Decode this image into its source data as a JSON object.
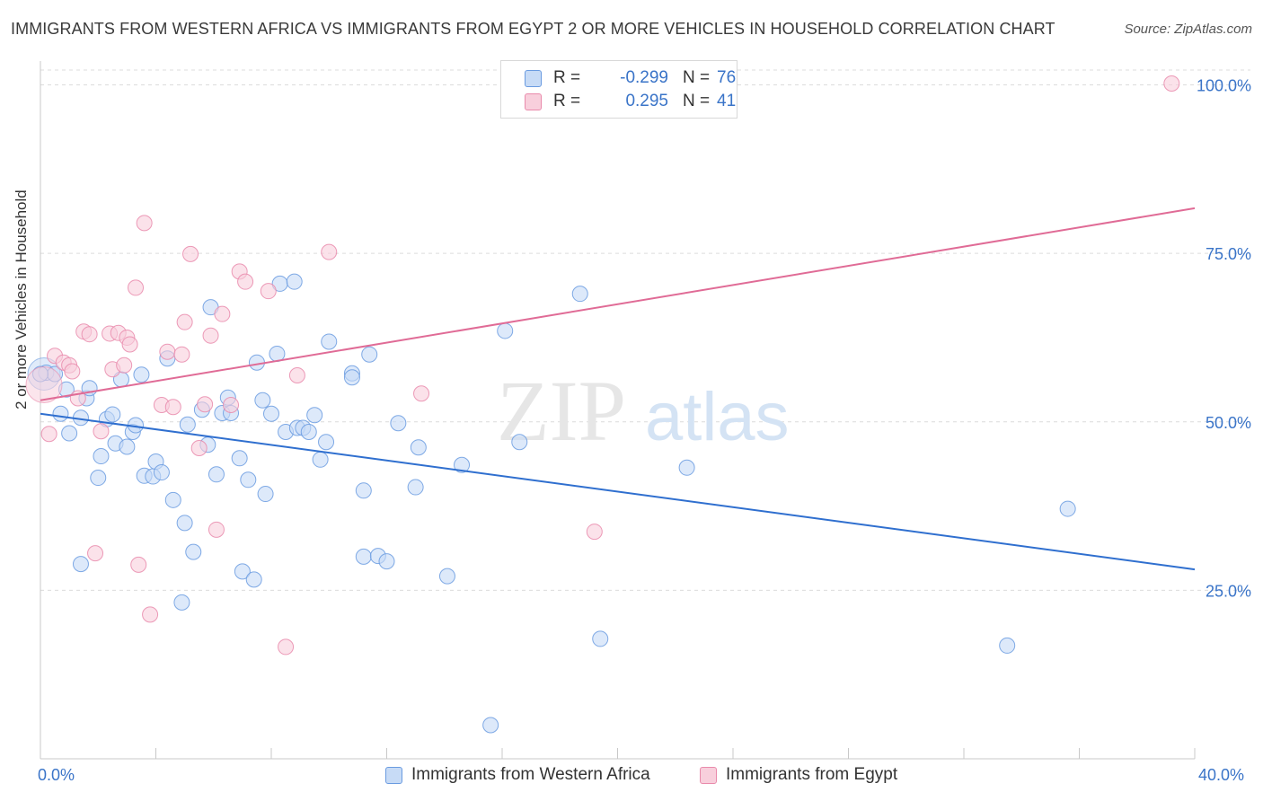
{
  "header": {
    "title": "IMMIGRANTS FROM WESTERN AFRICA VS IMMIGRANTS FROM EGYPT 2 OR MORE VEHICLES IN HOUSEHOLD CORRELATION CHART",
    "source": "Source: ZipAtlas.com"
  },
  "legend": {
    "r_label": "R =",
    "n_label": "N =",
    "series": [
      {
        "name": "Immigrants from Western Africa",
        "r": "-0.299",
        "n": "76"
      },
      {
        "name": "Immigrants from Egypt",
        "r": "0.295",
        "n": "41"
      }
    ]
  },
  "watermark": {
    "zip": "ZIP",
    "atlas": "atlas"
  },
  "chart_data": {
    "type": "scatter",
    "title": "IMMIGRANTS FROM WESTERN AFRICA VS IMMIGRANTS FROM EGYPT 2 OR MORE VEHICLES IN HOUSEHOLD CORRELATION CHART",
    "xlabel": "",
    "ylabel": "2 or more Vehicles in Household",
    "xlim": [
      0,
      40
    ],
    "ylim": [
      0,
      103
    ],
    "x_tick_labels": [
      "0.0%",
      "40.0%"
    ],
    "y_ticks": [
      25,
      50,
      75,
      100
    ],
    "y_tick_labels": [
      "25.0%",
      "50.0%",
      "75.0%",
      "100.0%"
    ],
    "grid": true,
    "colors": {
      "blue": "#6a9be0",
      "blue_fill": "#c7dbf6",
      "blue_line": "#2f6fcf",
      "pink": "#e98aab",
      "pink_fill": "#f8cfdc",
      "pink_line": "#e06b96",
      "tick_label": "#3a74c8"
    },
    "series": [
      {
        "name": "Immigrants from Western Africa",
        "trend": {
          "x": [
            0,
            40
          ],
          "y": [
            51.2,
            28.1
          ]
        },
        "points": [
          [
            0.2,
            57.3
          ],
          [
            0.5,
            57.1
          ],
          [
            0.9,
            54.8
          ],
          [
            0.7,
            51.2
          ],
          [
            1.0,
            48.3
          ],
          [
            1.4,
            50.6
          ],
          [
            1.6,
            53.5
          ],
          [
            1.7,
            55.0
          ],
          [
            2.0,
            41.7
          ],
          [
            2.1,
            44.9
          ],
          [
            2.3,
            50.4
          ],
          [
            2.5,
            51.1
          ],
          [
            2.6,
            46.8
          ],
          [
            2.8,
            56.3
          ],
          [
            3.0,
            46.3
          ],
          [
            3.2,
            48.5
          ],
          [
            3.3,
            49.5
          ],
          [
            3.5,
            57.0
          ],
          [
            3.6,
            42.0
          ],
          [
            3.9,
            41.9
          ],
          [
            4.0,
            44.1
          ],
          [
            4.2,
            42.5
          ],
          [
            4.4,
            59.4
          ],
          [
            4.6,
            38.4
          ],
          [
            4.9,
            23.2
          ],
          [
            5.0,
            35.0
          ],
          [
            5.1,
            49.6
          ],
          [
            5.3,
            30.7
          ],
          [
            5.6,
            51.8
          ],
          [
            5.8,
            46.6
          ],
          [
            5.9,
            67.0
          ],
          [
            6.1,
            42.2
          ],
          [
            6.3,
            51.3
          ],
          [
            6.5,
            53.6
          ],
          [
            6.6,
            51.3
          ],
          [
            6.9,
            44.6
          ],
          [
            7.0,
            27.8
          ],
          [
            7.2,
            41.4
          ],
          [
            7.4,
            26.6
          ],
          [
            7.5,
            58.8
          ],
          [
            7.7,
            53.2
          ],
          [
            7.8,
            39.3
          ],
          [
            8.0,
            51.2
          ],
          [
            8.2,
            60.1
          ],
          [
            8.3,
            70.5
          ],
          [
            8.5,
            48.5
          ],
          [
            8.8,
            70.8
          ],
          [
            8.9,
            49.1
          ],
          [
            9.1,
            49.1
          ],
          [
            9.3,
            48.5
          ],
          [
            9.5,
            51.0
          ],
          [
            9.7,
            44.4
          ],
          [
            9.9,
            47.0
          ],
          [
            10.0,
            61.9
          ],
          [
            10.8,
            57.2
          ],
          [
            10.8,
            56.6
          ],
          [
            11.2,
            30.0
          ],
          [
            11.2,
            39.8
          ],
          [
            11.4,
            60.0
          ],
          [
            11.7,
            30.1
          ],
          [
            12.0,
            29.3
          ],
          [
            12.4,
            49.8
          ],
          [
            13.0,
            40.3
          ],
          [
            13.1,
            46.2
          ],
          [
            14.1,
            27.1
          ],
          [
            14.6,
            43.6
          ],
          [
            15.6,
            5.0
          ],
          [
            16.1,
            63.5
          ],
          [
            16.6,
            47.0
          ],
          [
            18.7,
            69.0
          ],
          [
            19.4,
            17.8
          ],
          [
            22.4,
            43.2
          ],
          [
            33.5,
            16.8
          ],
          [
            35.6,
            37.1
          ],
          [
            0.0,
            57.1
          ],
          [
            1.4,
            28.9
          ]
        ]
      },
      {
        "name": "Immigrants from Egypt",
        "trend": {
          "x": [
            0,
            40
          ],
          "y": [
            53.2,
            81.7
          ]
        },
        "points": [
          [
            0.3,
            48.2
          ],
          [
            0.5,
            59.8
          ],
          [
            0.8,
            58.8
          ],
          [
            1.0,
            58.4
          ],
          [
            1.1,
            57.5
          ],
          [
            1.3,
            53.5
          ],
          [
            1.5,
            63.4
          ],
          [
            1.7,
            63.0
          ],
          [
            1.9,
            30.5
          ],
          [
            2.1,
            48.6
          ],
          [
            2.4,
            63.1
          ],
          [
            2.5,
            57.8
          ],
          [
            2.7,
            63.2
          ],
          [
            2.9,
            58.4
          ],
          [
            3.0,
            62.5
          ],
          [
            3.1,
            61.5
          ],
          [
            3.3,
            69.9
          ],
          [
            3.4,
            28.8
          ],
          [
            3.6,
            79.5
          ],
          [
            3.8,
            21.4
          ],
          [
            4.2,
            52.5
          ],
          [
            4.4,
            60.4
          ],
          [
            4.6,
            52.2
          ],
          [
            4.9,
            60.0
          ],
          [
            5.0,
            64.8
          ],
          [
            5.2,
            74.9
          ],
          [
            5.5,
            46.1
          ],
          [
            5.7,
            52.6
          ],
          [
            5.9,
            62.8
          ],
          [
            6.1,
            34.0
          ],
          [
            6.3,
            66.0
          ],
          [
            6.6,
            52.5
          ],
          [
            6.9,
            72.3
          ],
          [
            7.1,
            70.8
          ],
          [
            7.9,
            69.4
          ],
          [
            8.5,
            16.6
          ],
          [
            8.9,
            56.9
          ],
          [
            10.0,
            75.2
          ],
          [
            13.2,
            54.2
          ],
          [
            19.2,
            33.7
          ],
          [
            39.2,
            100.2
          ]
        ]
      }
    ]
  }
}
